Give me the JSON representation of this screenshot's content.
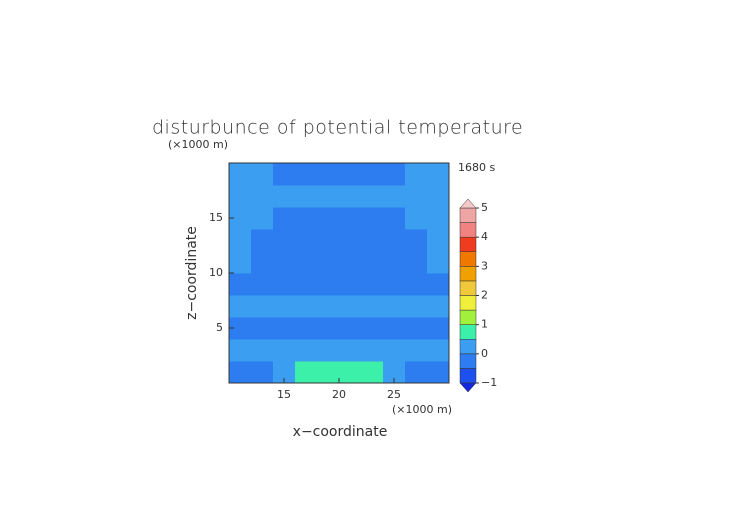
{
  "chart_data": {
    "type": "contour",
    "title": "disturbunce of potential temperature",
    "time_label": "1680 s",
    "x_label": "x−coordinate",
    "y_label": "z−coordinate",
    "x_unit": "(×1000 m)",
    "y_unit": "(×1000 m)",
    "x": [
      11,
      13,
      15,
      17,
      19,
      21,
      23,
      25,
      27,
      29
    ],
    "z": [
      1,
      3,
      5,
      7,
      9,
      11,
      13,
      15,
      17,
      19
    ],
    "values": [
      [
        -0.2,
        -0.2,
        0.2,
        0.6,
        0.6,
        0.6,
        0.6,
        0.2,
        -0.2,
        -0.2
      ],
      [
        0.2,
        0.2,
        0.2,
        0.2,
        0.2,
        0.2,
        0.2,
        0.2,
        0.2,
        0.2
      ],
      [
        -0.2,
        -0.2,
        -0.2,
        -0.2,
        -0.2,
        -0.2,
        -0.2,
        -0.2,
        -0.2,
        -0.2
      ],
      [
        0.2,
        0.2,
        0.2,
        0.2,
        0.2,
        0.2,
        0.2,
        0.2,
        0.2,
        0.2
      ],
      [
        -0.2,
        -0.2,
        -0.2,
        -0.2,
        -0.2,
        -0.2,
        -0.2,
        -0.2,
        -0.2,
        -0.2
      ],
      [
        0.2,
        -0.2,
        -0.2,
        -0.2,
        -0.2,
        -0.2,
        -0.2,
        -0.2,
        -0.2,
        0.2
      ],
      [
        0.2,
        -0.2,
        -0.2,
        -0.2,
        -0.2,
        -0.2,
        -0.2,
        -0.2,
        -0.2,
        0.2
      ],
      [
        0.2,
        0.2,
        -0.2,
        -0.2,
        -0.2,
        -0.2,
        -0.2,
        -0.2,
        0.2,
        0.2
      ],
      [
        0.2,
        0.2,
        0.2,
        0.2,
        0.2,
        0.2,
        0.2,
        0.2,
        0.2,
        0.2
      ],
      [
        0.2,
        0.2,
        -0.2,
        -0.2,
        -0.2,
        -0.2,
        -0.2,
        -0.2,
        0.2,
        0.2
      ]
    ],
    "levels": [
      -1,
      -0.5,
      0,
      0.5,
      1,
      1.5,
      2,
      2.5,
      3,
      3.5,
      4,
      4.5,
      5
    ],
    "colors": [
      "#1e50f0",
      "#2d7cf0",
      "#3c9ef0",
      "#3cf0aa",
      "#a0f03c",
      "#f0f03c",
      "#f0c83c",
      "#f0a000",
      "#f07800",
      "#f03c1e",
      "#f08282",
      "#f0a5a5"
    ],
    "under_color": "#1428dc",
    "over_color": "#f5c8c8",
    "xlim": [
      10,
      30
    ],
    "ylim": [
      0,
      20
    ],
    "xticks": [
      15,
      20,
      25
    ],
    "yticks": [
      5,
      10,
      15
    ],
    "cbar_ticks": [
      {
        "value": -1,
        "label": "−1"
      },
      0,
      1,
      2,
      3,
      4,
      5
    ]
  }
}
